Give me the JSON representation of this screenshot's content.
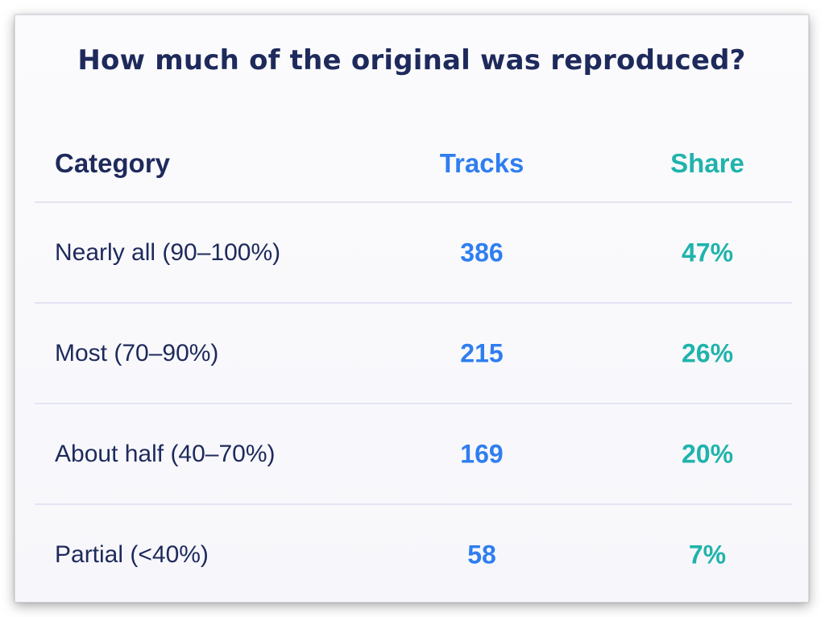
{
  "title": "How much of the original was reproduced?",
  "colors": {
    "title": "#1e2a5c",
    "tracks": "#2f7ef0",
    "share": "#20b3ac",
    "divider": "#e3e4f3"
  },
  "chart_data": {
    "type": "table",
    "title": "How much of the original was reproduced?",
    "columns": [
      "Category",
      "Tracks",
      "Share"
    ],
    "rows": [
      {
        "category": "Nearly all (90–100%)",
        "tracks": "386",
        "share": "47%"
      },
      {
        "category": "Most (70–90%)",
        "tracks": "215",
        "share": "26%"
      },
      {
        "category": "About half (40–70%)",
        "tracks": "169",
        "share": "20%"
      },
      {
        "category": "Partial (<40%)",
        "tracks": "58",
        "share": "7%"
      }
    ]
  }
}
